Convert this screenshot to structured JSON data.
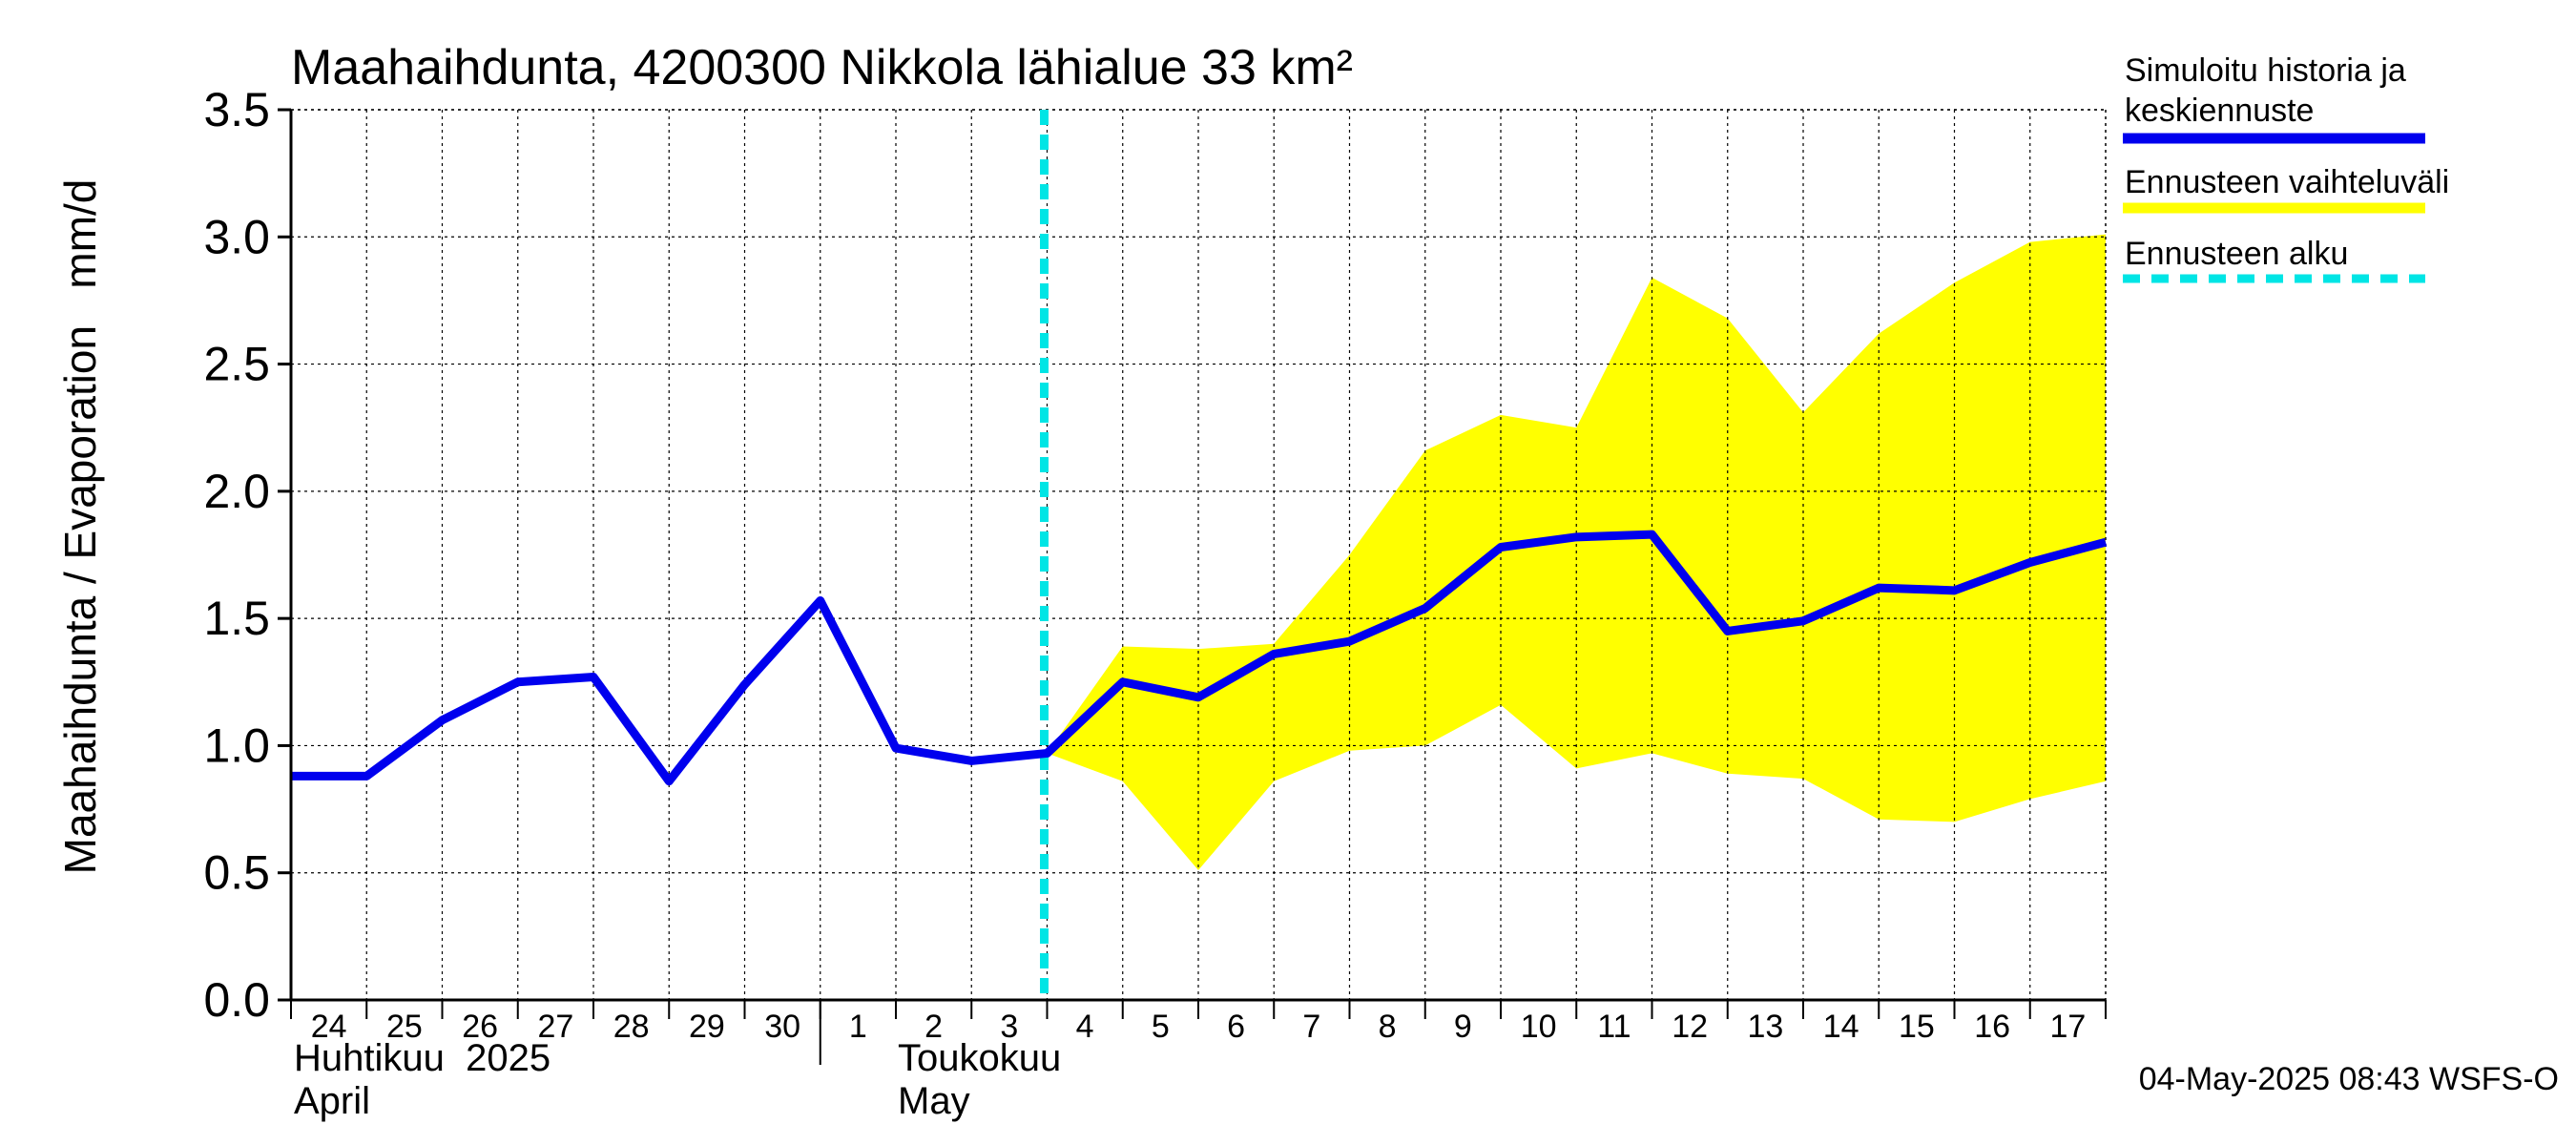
{
  "chart_data": {
    "type": "line",
    "title": "Maahaihdunta, 4200300 Nikkola lähialue 33 km²",
    "ylabel": "Maahaihdunta / Evaporation   mm/d",
    "ylim": [
      0,
      3.5
    ],
    "yticks": [
      "0.0",
      "0.5",
      "1.0",
      "1.5",
      "2.0",
      "2.5",
      "3.0",
      "3.5"
    ],
    "x_dates": [
      "04-24",
      "04-25",
      "04-26",
      "04-27",
      "04-28",
      "04-29",
      "04-30",
      "05-01",
      "05-02",
      "05-03",
      "05-04",
      "05-05",
      "05-06",
      "05-07",
      "05-08",
      "05-09",
      "05-10",
      "05-11",
      "05-12",
      "05-13",
      "05-14",
      "05-15",
      "05-16",
      "05-17",
      "05-18"
    ],
    "x_tick_labels": [
      "24",
      "25",
      "26",
      "27",
      "28",
      "29",
      "30",
      "1",
      "2",
      "3",
      "4",
      "5",
      "6",
      "7",
      "8",
      "9",
      "10",
      "11",
      "12",
      "13",
      "14",
      "15",
      "16",
      "17"
    ],
    "month_labels": [
      {
        "line1": "Huhtikuu  2025",
        "line2": "April"
      },
      {
        "line1": "Toukokuu",
        "line2": "May"
      }
    ],
    "series": [
      {
        "name": "Simuloitu historia ja keskiennuste",
        "color": "#0000ee",
        "x": [
          "04-24",
          "04-25",
          "04-26",
          "04-27",
          "04-28",
          "04-29",
          "04-30",
          "05-01",
          "05-02",
          "05-03",
          "05-04",
          "05-05",
          "05-06",
          "05-07",
          "05-08",
          "05-09",
          "05-10",
          "05-11",
          "05-12",
          "05-13",
          "05-14",
          "05-15",
          "05-16",
          "05-17",
          "05-18"
        ],
        "values": [
          0.88,
          0.88,
          1.1,
          1.25,
          1.27,
          0.86,
          1.24,
          1.57,
          0.99,
          0.94,
          0.97,
          1.25,
          1.19,
          1.36,
          1.41,
          1.54,
          1.78,
          1.82,
          1.83,
          1.45,
          1.49,
          1.62,
          1.61,
          1.72,
          1.8
        ]
      },
      {
        "name": "Ennusteen vaihteluväli",
        "color": "#ffff00",
        "type": "band",
        "x": [
          "05-04",
          "05-05",
          "05-06",
          "05-07",
          "05-08",
          "05-09",
          "05-10",
          "05-11",
          "05-12",
          "05-13",
          "05-14",
          "05-15",
          "05-16",
          "05-17",
          "05-18"
        ],
        "upper": [
          0.97,
          1.39,
          1.38,
          1.4,
          1.75,
          2.16,
          2.3,
          2.25,
          2.84,
          2.68,
          2.31,
          2.62,
          2.82,
          2.98,
          3.01
        ],
        "lower": [
          0.97,
          0.86,
          0.51,
          0.86,
          0.98,
          1.0,
          1.16,
          0.91,
          0.97,
          0.89,
          0.87,
          0.71,
          0.7,
          0.79,
          0.86
        ]
      }
    ],
    "forecast_start": {
      "name": "Ennusteen alku",
      "x": "05-04",
      "color": "#00e5e5"
    },
    "legend": [
      {
        "label": "Simuloitu historia ja keskiennuste",
        "color": "#0000ee",
        "style": "solid"
      },
      {
        "label": "Ennusteen vaihteluväli",
        "color": "#ffff00",
        "style": "solid"
      },
      {
        "label": "Ennusteen alku",
        "color": "#00e5e5",
        "style": "dashed"
      }
    ],
    "legend_position": "right",
    "grid": true,
    "footer": "04-May-2025 08:43 WSFS-O"
  }
}
